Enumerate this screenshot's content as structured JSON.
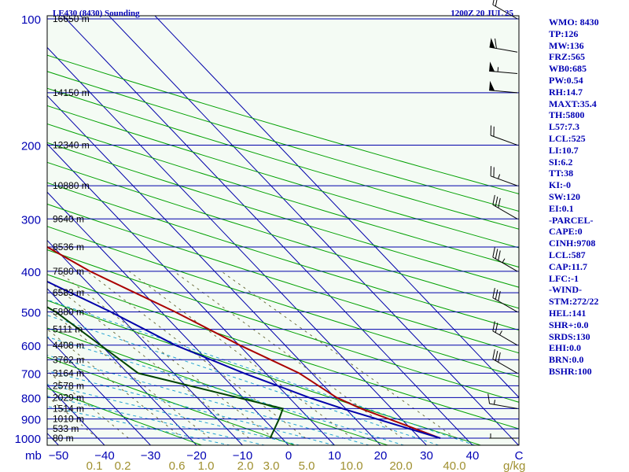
{
  "chart_data": {
    "type": "line",
    "title": "LE430 (8430) Sounding",
    "timestamp": "1200Z 20 JUL 25",
    "pressure_ticks": [
      "100",
      "200",
      "300",
      "400",
      "500",
      "600",
      "700",
      "800",
      "900",
      "1000"
    ],
    "pressure_axis_label": "mb",
    "temperature_ticks": [
      "−50",
      "−40",
      "−30",
      "−20",
      "−10",
      "0",
      "10",
      "20",
      "30",
      "40",
      "C"
    ],
    "mixing_ratio_ticks": [
      "0.1",
      "0.2",
      "0.6",
      "1.0",
      "2.0",
      "3.0",
      "5.0",
      "10.0",
      "20.0",
      "40.0"
    ],
    "mixing_ratio_unit": "g/kg",
    "height_labels": [
      {
        "p": 100,
        "label": "16650 m"
      },
      {
        "p": 150,
        "label": "14150 m"
      },
      {
        "p": 200,
        "label": "12340 m"
      },
      {
        "p": 250,
        "label": "10880 m"
      },
      {
        "p": 300,
        "label": "9640 m"
      },
      {
        "p": 350,
        "label": "8536 m"
      },
      {
        "p": 400,
        "label": "7580 m"
      },
      {
        "p": 450,
        "label": "6583 m"
      },
      {
        "p": 500,
        "label": "5880 m"
      },
      {
        "p": 550,
        "label": "5111 m"
      },
      {
        "p": 600,
        "label": "4408 m"
      },
      {
        "p": 650,
        "label": "3762 m"
      },
      {
        "p": 700,
        "label": "3164 m"
      },
      {
        "p": 750,
        "label": "2578 m"
      },
      {
        "p": 800,
        "label": "2029 m"
      },
      {
        "p": 850,
        "label": "1514 m"
      },
      {
        "p": 900,
        "label": "1010 m"
      },
      {
        "p": 950,
        "label": "533 m"
      },
      {
        "p": 1000,
        "label": "80 m"
      }
    ],
    "series": [
      {
        "key": "temperature",
        "color": "#aa0000",
        "points": [
          [
            100,
            -2
          ],
          [
            120,
            -7
          ],
          [
            150,
            -13
          ],
          [
            200,
            -23
          ],
          [
            250,
            -22
          ],
          [
            300,
            -17
          ],
          [
            400,
            -8
          ],
          [
            500,
            2
          ],
          [
            600,
            9
          ],
          [
            700,
            16
          ],
          [
            800,
            19
          ],
          [
            850,
            22
          ],
          [
            1000,
            33
          ]
        ]
      },
      {
        "key": "dewpoint",
        "color": "#004400",
        "points": [
          [
            100,
            -35
          ],
          [
            120,
            -43
          ],
          [
            150,
            -48
          ],
          [
            200,
            -30
          ],
          [
            250,
            -20
          ],
          [
            300,
            -33
          ],
          [
            400,
            -31
          ],
          [
            500,
            -24
          ],
          [
            700,
            -19
          ],
          [
            850,
            5
          ],
          [
            900,
            2
          ],
          [
            1000,
            -4
          ]
        ]
      },
      {
        "key": "parcel",
        "color": "#0000aa",
        "points": [
          [
            100,
            -74
          ],
          [
            150,
            -60
          ],
          [
            200,
            -50
          ],
          [
            250,
            -40
          ],
          [
            300,
            -34
          ],
          [
            400,
            -22
          ],
          [
            500,
            -12
          ],
          [
            600,
            -5
          ],
          [
            700,
            4
          ],
          [
            800,
            13
          ],
          [
            850,
            18
          ],
          [
            1000,
            33
          ]
        ]
      }
    ],
    "wind_barbs": [
      {
        "p": 100,
        "dir": 300,
        "kt": 20
      },
      {
        "p": 120,
        "dir": 280,
        "kt": 60
      },
      {
        "p": 135,
        "dir": 275,
        "kt": 55
      },
      {
        "p": 150,
        "dir": 275,
        "kt": 50
      },
      {
        "p": 200,
        "dir": 290,
        "kt": 20
      },
      {
        "p": 250,
        "dir": 290,
        "kt": 25
      },
      {
        "p": 300,
        "dir": 300,
        "kt": 30
      },
      {
        "p": 400,
        "dir": 300,
        "kt": 35
      },
      {
        "p": 500,
        "dir": 300,
        "kt": 30
      },
      {
        "p": 600,
        "dir": 300,
        "kt": 25
      },
      {
        "p": 700,
        "dir": 300,
        "kt": 30
      },
      {
        "p": 850,
        "dir": 280,
        "kt": 15
      },
      {
        "p": 1000,
        "dir": 270,
        "kt": 5
      }
    ],
    "colors": {
      "isobar": "#0000aa",
      "isotherm": "#0000aa",
      "dry_adiabat": "#00a000",
      "moist_adiabat": "#20a0d0",
      "mixing_ratio": "#707040",
      "axis_label": "#0000b4",
      "mixing_ratio_label": "#a09030",
      "background": "#ffffff",
      "plot_background": "#f4fbf4"
    }
  },
  "indices": [
    "WMO: 8430",
    "TP:126",
    "MW:136",
    "FRZ:565",
    "WB0:685",
    "PW:0.54",
    "RH:14.7",
    "MAXT:35.4",
    "TH:5800",
    "L57:7.3",
    "LCL:525",
    "LI:10.7",
    "SI:6.2",
    "TT:38",
    "KI:-0",
    "SW:120",
    "EI:0.1",
    "-PARCEL-",
    "CAPE:0",
    "CINH:9708",
    "LCL:587",
    "CAP:11.7",
    "LFC:-1",
    "-WIND-",
    "STM:272/22",
    "HEL:141",
    "SHR+:0.0",
    "SRDS:130",
    "EHI:0.0",
    "BRN:0.0",
    "BSHR:100"
  ]
}
